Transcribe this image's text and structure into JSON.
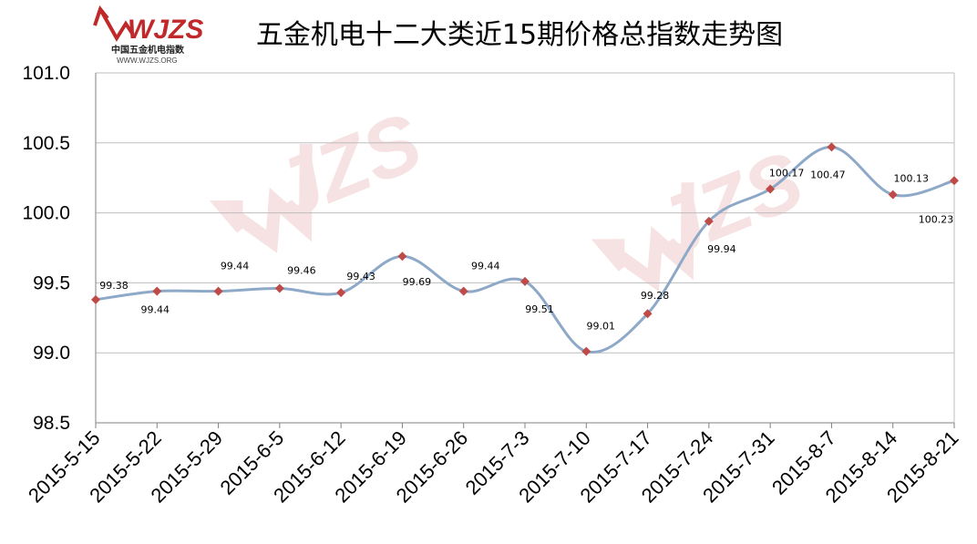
{
  "logo": {
    "brand": "WJZS",
    "cn": "中国五金机电指数",
    "url": "WWW.WJZS.ORG",
    "color": "#c0282a"
  },
  "chart_data": {
    "type": "line",
    "title": "五金机电十二大类近15期价格总指数走势图",
    "categories": [
      "2015-5-15",
      "2015-5-22",
      "2015-5-29",
      "2015-6-5",
      "2015-6-12",
      "2015-6-19",
      "2015-6-26",
      "2015-7-3",
      "2015-7-10",
      "2015-7-17",
      "2015-7-24",
      "2015-7-31",
      "2015-8-7",
      "2015-8-14",
      "2015-8-21"
    ],
    "series": [
      {
        "values": [
          99.38,
          99.44,
          99.44,
          99.46,
          99.43,
          99.69,
          99.44,
          99.51,
          99.01,
          99.28,
          99.94,
          100.17,
          100.47,
          100.13,
          100.23
        ],
        "labels": [
          "99.38",
          "99.44",
          "99.44",
          "99.46",
          "99.43",
          "99.69",
          "99.44",
          "99.51",
          "99.01",
          "99.28",
          "99.94",
          "100.17",
          "100.47",
          "100.13",
          "100.23"
        ],
        "line_color": "#8ea9c8",
        "marker_color": "#be4b48"
      }
    ],
    "ylim": [
      98.5,
      101.0
    ],
    "yticks": [
      "98.5",
      "99.0",
      "99.5",
      "100.0",
      "100.5",
      "101.0"
    ],
    "grid": true,
    "smooth": true
  }
}
